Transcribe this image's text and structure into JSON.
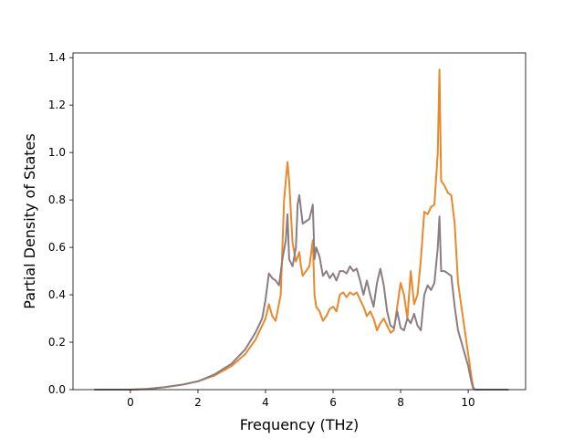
{
  "chart_data": {
    "type": "line",
    "title": "",
    "xlabel": "Frequency (THz)",
    "ylabel": "Partial Density of States",
    "xlim": [
      -1.7,
      11.7
    ],
    "ylim": [
      0,
      1.42
    ],
    "xticks": [
      0,
      2,
      4,
      6,
      8,
      10
    ],
    "yticks": [
      0.0,
      0.2,
      0.4,
      0.6,
      0.8,
      1.0,
      1.2,
      1.4
    ],
    "xtick_labels": [
      "0",
      "2",
      "4",
      "6",
      "8",
      "10"
    ],
    "ytick_labels": [
      "0.0",
      "0.2",
      "0.4",
      "0.6",
      "0.8",
      "1.0",
      "1.2",
      "1.4"
    ],
    "grid": false,
    "legend": null,
    "series": [
      {
        "color": "#e8892a",
        "x": [
          -1.07,
          0,
          0.5,
          1.0,
          1.5,
          2.0,
          2.5,
          3.0,
          3.4,
          3.7,
          4.0,
          4.1,
          4.2,
          4.3,
          4.45,
          4.55,
          4.65,
          4.7,
          4.8,
          4.9,
          5.0,
          5.05,
          5.1,
          5.2,
          5.3,
          5.4,
          5.45,
          5.5,
          5.6,
          5.7,
          5.8,
          5.9,
          6.0,
          6.1,
          6.2,
          6.3,
          6.4,
          6.5,
          6.6,
          6.7,
          6.8,
          6.9,
          7.0,
          7.1,
          7.2,
          7.3,
          7.4,
          7.5,
          7.6,
          7.7,
          7.8,
          7.9,
          8.0,
          8.1,
          8.2,
          8.3,
          8.4,
          8.5,
          8.6,
          8.7,
          8.8,
          8.9,
          9.0,
          9.1,
          9.15,
          9.2,
          9.3,
          9.4,
          9.5,
          9.6,
          9.7,
          9.8,
          9.9,
          10.0,
          10.1,
          10.15,
          10.2,
          11.2
        ],
        "y": [
          0,
          0,
          0.003,
          0.01,
          0.02,
          0.035,
          0.06,
          0.1,
          0.15,
          0.21,
          0.3,
          0.36,
          0.31,
          0.29,
          0.4,
          0.8,
          0.96,
          0.88,
          0.62,
          0.54,
          0.58,
          0.52,
          0.48,
          0.5,
          0.52,
          0.63,
          0.4,
          0.35,
          0.33,
          0.29,
          0.31,
          0.34,
          0.35,
          0.33,
          0.4,
          0.41,
          0.39,
          0.41,
          0.4,
          0.41,
          0.38,
          0.35,
          0.31,
          0.33,
          0.3,
          0.25,
          0.28,
          0.3,
          0.27,
          0.24,
          0.25,
          0.35,
          0.45,
          0.4,
          0.3,
          0.5,
          0.36,
          0.4,
          0.55,
          0.75,
          0.74,
          0.77,
          0.78,
          1.0,
          1.35,
          0.88,
          0.86,
          0.83,
          0.82,
          0.7,
          0.45,
          0.35,
          0.25,
          0.15,
          0.05,
          0.01,
          0,
          0
        ]
      },
      {
        "color": "#8c7d83",
        "x": [
          -1.07,
          0,
          0.5,
          1.0,
          1.5,
          2.0,
          2.5,
          3.0,
          3.4,
          3.7,
          3.9,
          4.0,
          4.1,
          4.2,
          4.3,
          4.4,
          4.5,
          4.6,
          4.65,
          4.7,
          4.8,
          4.9,
          4.95,
          5.0,
          5.1,
          5.2,
          5.3,
          5.4,
          5.45,
          5.5,
          5.6,
          5.7,
          5.8,
          5.9,
          6.0,
          6.1,
          6.2,
          6.3,
          6.4,
          6.5,
          6.6,
          6.7,
          6.8,
          6.9,
          7.0,
          7.1,
          7.2,
          7.3,
          7.4,
          7.5,
          7.6,
          7.7,
          7.8,
          7.9,
          8.0,
          8.1,
          8.2,
          8.3,
          8.4,
          8.5,
          8.6,
          8.7,
          8.8,
          8.9,
          9.0,
          9.1,
          9.15,
          9.2,
          9.3,
          9.4,
          9.5,
          9.6,
          9.7,
          9.8,
          9.9,
          10.0,
          10.1,
          10.15,
          10.2,
          11.2
        ],
        "y": [
          0,
          0,
          0.003,
          0.01,
          0.02,
          0.035,
          0.065,
          0.11,
          0.17,
          0.24,
          0.3,
          0.38,
          0.49,
          0.47,
          0.46,
          0.44,
          0.55,
          0.63,
          0.74,
          0.55,
          0.52,
          0.6,
          0.78,
          0.82,
          0.7,
          0.71,
          0.72,
          0.78,
          0.55,
          0.6,
          0.56,
          0.48,
          0.5,
          0.47,
          0.49,
          0.46,
          0.5,
          0.5,
          0.49,
          0.52,
          0.5,
          0.51,
          0.46,
          0.4,
          0.46,
          0.4,
          0.35,
          0.45,
          0.51,
          0.44,
          0.33,
          0.27,
          0.26,
          0.33,
          0.26,
          0.25,
          0.3,
          0.28,
          0.32,
          0.27,
          0.25,
          0.4,
          0.44,
          0.42,
          0.45,
          0.6,
          0.73,
          0.5,
          0.5,
          0.49,
          0.48,
          0.35,
          0.25,
          0.2,
          0.15,
          0.1,
          0.03,
          0.005,
          0,
          0
        ]
      }
    ]
  }
}
